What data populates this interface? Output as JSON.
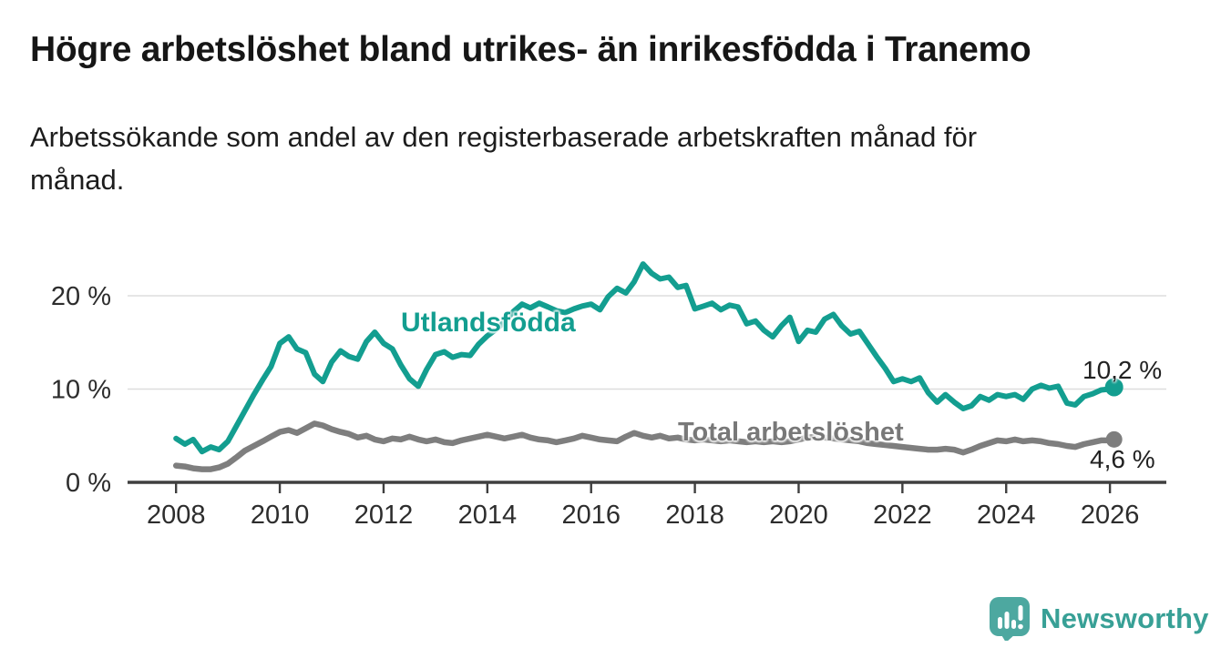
{
  "header": {
    "title": "Högre arbetslöshet bland utrikes- än inrikesfödda i Tranemo",
    "subtitle": "Arbetssökande som andel av den registerbaserade arbetskraften månad för månad."
  },
  "branding": {
    "logo_text": "Newsworthy"
  },
  "colors": {
    "teal": "#139e90",
    "gray": "#7e7e7e",
    "gridline": "#dddddd",
    "axis": "#3f3f3f",
    "tick_text": "#2d2d2d"
  },
  "chart_data": {
    "type": "line",
    "title": "Högre arbetslöshet bland utrikes- än inrikesfödda i Tranemo",
    "subtitle": "Arbetssökande som andel av den registerbaserade arbetskraften månad för månad.",
    "xlabel": "",
    "ylabel": "",
    "unit": "%",
    "grid": true,
    "legend_position": "inline-labels",
    "xlim": [
      2007.1,
      2027.1
    ],
    "ylim": [
      0,
      26
    ],
    "x_ticks": [
      {
        "value": 2008,
        "label": "2008"
      },
      {
        "value": 2010,
        "label": "2010"
      },
      {
        "value": 2012,
        "label": "2012"
      },
      {
        "value": 2014,
        "label": "2014"
      },
      {
        "value": 2016,
        "label": "2016"
      },
      {
        "value": 2018,
        "label": "2018"
      },
      {
        "value": 2020,
        "label": "2020"
      },
      {
        "value": 2022,
        "label": "2022"
      },
      {
        "value": 2024,
        "label": "2024"
      },
      {
        "value": 2026,
        "label": "2026"
      }
    ],
    "y_ticks": [
      {
        "value": 0,
        "label": "0 %"
      },
      {
        "value": 10,
        "label": "10 %"
      },
      {
        "value": 20,
        "label": "20 %"
      }
    ],
    "series": [
      {
        "name": "Utlandsfödda",
        "color": "#139e90",
        "stroke_width": 6,
        "end_marker_radius": 10,
        "end_label": "10,2 %",
        "end_value": 10.2,
        "points": [
          [
            2008.0,
            4.7
          ],
          [
            2008.17,
            4.1
          ],
          [
            2008.33,
            4.6
          ],
          [
            2008.5,
            3.3
          ],
          [
            2008.67,
            3.8
          ],
          [
            2008.83,
            3.5
          ],
          [
            2009.0,
            4.4
          ],
          [
            2009.17,
            6.1
          ],
          [
            2009.33,
            7.7
          ],
          [
            2009.5,
            9.4
          ],
          [
            2009.67,
            11.0
          ],
          [
            2009.83,
            12.4
          ],
          [
            2010.0,
            14.9
          ],
          [
            2010.17,
            15.6
          ],
          [
            2010.33,
            14.3
          ],
          [
            2010.5,
            13.9
          ],
          [
            2010.67,
            11.6
          ],
          [
            2010.83,
            10.8
          ],
          [
            2011.0,
            12.9
          ],
          [
            2011.17,
            14.1
          ],
          [
            2011.33,
            13.5
          ],
          [
            2011.5,
            13.2
          ],
          [
            2011.67,
            15.1
          ],
          [
            2011.83,
            16.1
          ],
          [
            2012.0,
            14.9
          ],
          [
            2012.17,
            14.3
          ],
          [
            2012.33,
            12.6
          ],
          [
            2012.5,
            11.1
          ],
          [
            2012.67,
            10.3
          ],
          [
            2012.83,
            12.1
          ],
          [
            2013.0,
            13.7
          ],
          [
            2013.17,
            14.0
          ],
          [
            2013.33,
            13.4
          ],
          [
            2013.5,
            13.7
          ],
          [
            2013.67,
            13.6
          ],
          [
            2013.83,
            14.8
          ],
          [
            2014.0,
            15.7
          ],
          [
            2014.17,
            16.4
          ],
          [
            2014.33,
            17.2
          ],
          [
            2014.5,
            18.3
          ],
          [
            2014.67,
            19.1
          ],
          [
            2014.83,
            18.7
          ],
          [
            2015.0,
            19.2
          ],
          [
            2015.17,
            18.8
          ],
          [
            2015.33,
            18.4
          ],
          [
            2015.5,
            18.2
          ],
          [
            2015.67,
            18.6
          ],
          [
            2015.83,
            18.9
          ],
          [
            2016.0,
            19.1
          ],
          [
            2016.17,
            18.5
          ],
          [
            2016.33,
            19.9
          ],
          [
            2016.5,
            20.8
          ],
          [
            2016.67,
            20.3
          ],
          [
            2016.83,
            21.5
          ],
          [
            2017.0,
            23.4
          ],
          [
            2017.17,
            22.4
          ],
          [
            2017.33,
            21.8
          ],
          [
            2017.5,
            22.0
          ],
          [
            2017.67,
            20.9
          ],
          [
            2017.83,
            21.1
          ],
          [
            2018.0,
            18.6
          ],
          [
            2018.17,
            18.9
          ],
          [
            2018.33,
            19.2
          ],
          [
            2018.5,
            18.5
          ],
          [
            2018.67,
            19.0
          ],
          [
            2018.83,
            18.8
          ],
          [
            2019.0,
            17.0
          ],
          [
            2019.17,
            17.3
          ],
          [
            2019.33,
            16.3
          ],
          [
            2019.5,
            15.6
          ],
          [
            2019.67,
            16.8
          ],
          [
            2019.83,
            17.7
          ],
          [
            2020.0,
            15.1
          ],
          [
            2020.17,
            16.3
          ],
          [
            2020.33,
            16.1
          ],
          [
            2020.5,
            17.5
          ],
          [
            2020.67,
            18.0
          ],
          [
            2020.83,
            16.8
          ],
          [
            2021.0,
            15.9
          ],
          [
            2021.17,
            16.2
          ],
          [
            2021.33,
            14.9
          ],
          [
            2021.5,
            13.5
          ],
          [
            2021.67,
            12.2
          ],
          [
            2021.83,
            10.8
          ],
          [
            2022.0,
            11.1
          ],
          [
            2022.17,
            10.8
          ],
          [
            2022.33,
            11.2
          ],
          [
            2022.5,
            9.6
          ],
          [
            2022.67,
            8.6
          ],
          [
            2022.83,
            9.4
          ],
          [
            2023.0,
            8.6
          ],
          [
            2023.17,
            7.9
          ],
          [
            2023.33,
            8.2
          ],
          [
            2023.5,
            9.2
          ],
          [
            2023.67,
            8.8
          ],
          [
            2023.83,
            9.4
          ],
          [
            2024.0,
            9.2
          ],
          [
            2024.17,
            9.4
          ],
          [
            2024.33,
            8.9
          ],
          [
            2024.5,
            10.0
          ],
          [
            2024.67,
            10.4
          ],
          [
            2024.83,
            10.1
          ],
          [
            2025.0,
            10.3
          ],
          [
            2025.17,
            8.5
          ],
          [
            2025.33,
            8.3
          ],
          [
            2025.5,
            9.2
          ],
          [
            2025.67,
            9.5
          ],
          [
            2025.83,
            9.9
          ],
          [
            2026.0,
            10.0
          ],
          [
            2026.08,
            10.2
          ]
        ]
      },
      {
        "name": "Total arbetslöshet",
        "color": "#7e7e7e",
        "stroke_width": 6.5,
        "end_marker_radius": 9,
        "end_label": "4,6 %",
        "end_value": 4.6,
        "points": [
          [
            2008.0,
            1.8
          ],
          [
            2008.17,
            1.7
          ],
          [
            2008.33,
            1.5
          ],
          [
            2008.5,
            1.4
          ],
          [
            2008.67,
            1.4
          ],
          [
            2008.83,
            1.6
          ],
          [
            2009.0,
            2.0
          ],
          [
            2009.17,
            2.7
          ],
          [
            2009.33,
            3.4
          ],
          [
            2009.5,
            3.9
          ],
          [
            2009.67,
            4.4
          ],
          [
            2009.83,
            4.9
          ],
          [
            2010.0,
            5.4
          ],
          [
            2010.17,
            5.6
          ],
          [
            2010.33,
            5.3
          ],
          [
            2010.5,
            5.8
          ],
          [
            2010.67,
            6.3
          ],
          [
            2010.83,
            6.1
          ],
          [
            2011.0,
            5.7
          ],
          [
            2011.17,
            5.4
          ],
          [
            2011.33,
            5.2
          ],
          [
            2011.5,
            4.8
          ],
          [
            2011.67,
            5.0
          ],
          [
            2011.83,
            4.6
          ],
          [
            2012.0,
            4.4
          ],
          [
            2012.17,
            4.7
          ],
          [
            2012.33,
            4.6
          ],
          [
            2012.5,
            4.9
          ],
          [
            2012.67,
            4.6
          ],
          [
            2012.83,
            4.4
          ],
          [
            2013.0,
            4.6
          ],
          [
            2013.17,
            4.3
          ],
          [
            2013.33,
            4.2
          ],
          [
            2013.5,
            4.5
          ],
          [
            2013.67,
            4.7
          ],
          [
            2013.83,
            4.9
          ],
          [
            2014.0,
            5.1
          ],
          [
            2014.17,
            4.9
          ],
          [
            2014.33,
            4.7
          ],
          [
            2014.5,
            4.9
          ],
          [
            2014.67,
            5.1
          ],
          [
            2014.83,
            4.8
          ],
          [
            2015.0,
            4.6
          ],
          [
            2015.17,
            4.5
          ],
          [
            2015.33,
            4.3
          ],
          [
            2015.5,
            4.5
          ],
          [
            2015.67,
            4.7
          ],
          [
            2015.83,
            5.0
          ],
          [
            2016.0,
            4.8
          ],
          [
            2016.17,
            4.6
          ],
          [
            2016.33,
            4.5
          ],
          [
            2016.5,
            4.4
          ],
          [
            2016.67,
            4.9
          ],
          [
            2016.83,
            5.3
          ],
          [
            2017.0,
            5.0
          ],
          [
            2017.17,
            4.8
          ],
          [
            2017.33,
            5.0
          ],
          [
            2017.5,
            4.7
          ],
          [
            2017.67,
            4.8
          ],
          [
            2017.83,
            4.6
          ],
          [
            2018.0,
            4.5
          ],
          [
            2018.17,
            4.6
          ],
          [
            2018.33,
            4.5
          ],
          [
            2018.5,
            4.4
          ],
          [
            2018.67,
            4.5
          ],
          [
            2018.83,
            4.4
          ],
          [
            2019.0,
            4.3
          ],
          [
            2019.17,
            4.4
          ],
          [
            2019.33,
            4.3
          ],
          [
            2019.5,
            4.4
          ],
          [
            2019.67,
            4.3
          ],
          [
            2019.83,
            4.4
          ],
          [
            2020.0,
            4.6
          ],
          [
            2020.17,
            4.8
          ],
          [
            2020.33,
            4.9
          ],
          [
            2020.5,
            4.8
          ],
          [
            2020.67,
            4.7
          ],
          [
            2020.83,
            4.6
          ],
          [
            2021.0,
            4.5
          ],
          [
            2021.17,
            4.4
          ],
          [
            2021.33,
            4.2
          ],
          [
            2021.5,
            4.1
          ],
          [
            2021.67,
            4.0
          ],
          [
            2021.83,
            3.9
          ],
          [
            2022.0,
            3.8
          ],
          [
            2022.17,
            3.7
          ],
          [
            2022.33,
            3.6
          ],
          [
            2022.5,
            3.5
          ],
          [
            2022.67,
            3.5
          ],
          [
            2022.83,
            3.6
          ],
          [
            2023.0,
            3.5
          ],
          [
            2023.17,
            3.2
          ],
          [
            2023.33,
            3.5
          ],
          [
            2023.5,
            3.9
          ],
          [
            2023.67,
            4.2
          ],
          [
            2023.83,
            4.5
          ],
          [
            2024.0,
            4.4
          ],
          [
            2024.17,
            4.6
          ],
          [
            2024.33,
            4.4
          ],
          [
            2024.5,
            4.5
          ],
          [
            2024.67,
            4.4
          ],
          [
            2024.83,
            4.2
          ],
          [
            2025.0,
            4.1
          ],
          [
            2025.17,
            3.9
          ],
          [
            2025.33,
            3.8
          ],
          [
            2025.5,
            4.1
          ],
          [
            2025.67,
            4.3
          ],
          [
            2025.83,
            4.5
          ],
          [
            2026.0,
            4.5
          ],
          [
            2026.08,
            4.6
          ]
        ]
      }
    ]
  }
}
